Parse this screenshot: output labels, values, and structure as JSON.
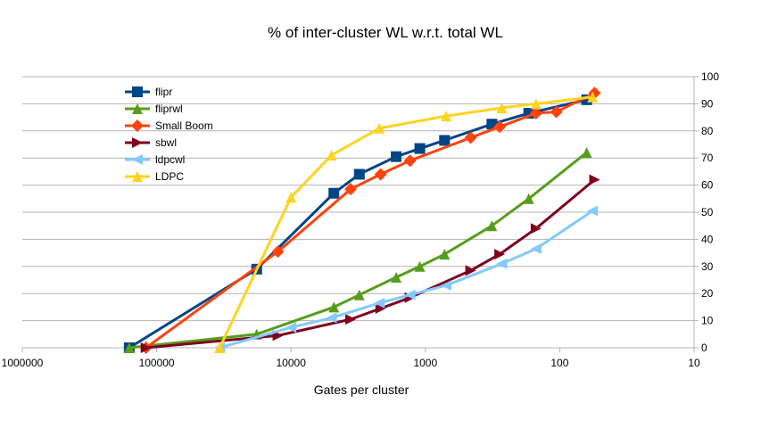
{
  "chart_data": {
    "type": "line",
    "title": "% of inter-cluster WL w.r.t. total WL",
    "xlabel": "Gates per cluster",
    "ylabel": "",
    "x_scale": "log",
    "x_reversed": true,
    "xlim": [
      1000000,
      10
    ],
    "x_ticks": [
      "1000000",
      "100000",
      "10000",
      "1000",
      "100",
      "10"
    ],
    "ylim": [
      0,
      100
    ],
    "y_ticks": [
      "0",
      "10",
      "20",
      "30",
      "40",
      "50",
      "60",
      "70",
      "80",
      "90",
      "100"
    ],
    "y_axis_side": "right",
    "grid": "horizontal",
    "legend_position": "upper-left inside plot",
    "series": [
      {
        "name": "flipr",
        "color": "#004586",
        "marker": "square",
        "points": [
          [
            160000,
            0
          ],
          [
            18000,
            29
          ],
          [
            4800,
            57
          ],
          [
            3100,
            64
          ],
          [
            1650,
            70.5
          ],
          [
            1100,
            73.5
          ],
          [
            720,
            76.5
          ],
          [
            320,
            82.5
          ],
          [
            170,
            86.5
          ],
          [
            63,
            91.5
          ]
        ]
      },
      {
        "name": "fliprwl",
        "color": "#579d1c",
        "marker": "triangle-up",
        "points": [
          [
            160000,
            0
          ],
          [
            18000,
            5
          ],
          [
            4800,
            15
          ],
          [
            3100,
            19.5
          ],
          [
            1650,
            26
          ],
          [
            1100,
            30
          ],
          [
            720,
            34.5
          ],
          [
            320,
            45
          ],
          [
            170,
            55
          ],
          [
            63,
            72
          ]
        ]
      },
      {
        "name": "Small Boom",
        "color": "#ff420e",
        "marker": "diamond",
        "points": [
          [
            120000,
            0
          ],
          [
            12500,
            35.5
          ],
          [
            3600,
            58.5
          ],
          [
            2150,
            64
          ],
          [
            1300,
            69
          ],
          [
            460,
            77.5
          ],
          [
            280,
            81.5
          ],
          [
            150,
            86.5
          ],
          [
            106,
            87
          ],
          [
            55,
            94
          ]
        ]
      },
      {
        "name": "sbwl",
        "color": "#7e0021",
        "marker": "triangle-right",
        "points": [
          [
            120000,
            0
          ],
          [
            12500,
            4.5
          ],
          [
            3600,
            10.5
          ],
          [
            2150,
            14.5
          ],
          [
            1300,
            18.5
          ],
          [
            460,
            28.5
          ],
          [
            280,
            34.5
          ],
          [
            150,
            44
          ],
          [
            55,
            62
          ]
        ]
      },
      {
        "name": "ldpcwl",
        "color": "#83caff",
        "marker": "triangle-left",
        "points": [
          [
            34000,
            0
          ],
          [
            10000,
            7.5
          ],
          [
            5000,
            11
          ],
          [
            2200,
            16.5
          ],
          [
            1300,
            19.5
          ],
          [
            700,
            23
          ],
          [
            270,
            31
          ],
          [
            150,
            36.5
          ],
          [
            57,
            50.5
          ]
        ]
      },
      {
        "name": "LDPC",
        "color": "#ffd320",
        "marker": "triangle-up",
        "points": [
          [
            34000,
            0
          ],
          [
            10000,
            55.5
          ],
          [
            5000,
            71
          ],
          [
            2200,
            81
          ],
          [
            700,
            85.5
          ],
          [
            270,
            88.5
          ],
          [
            150,
            90
          ],
          [
            57,
            92.5
          ]
        ]
      }
    ]
  }
}
